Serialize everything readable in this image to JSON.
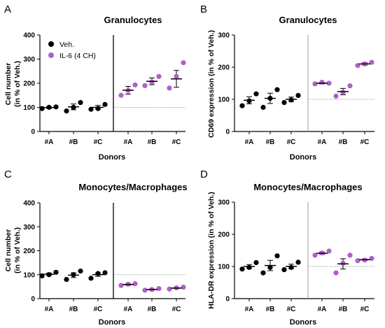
{
  "colors": {
    "veh": "#000000",
    "il6": "#b25fcc",
    "axis": "#000000",
    "baseline": "#888888",
    "divider_A_C": "#000000",
    "divider_B_D": "#999999"
  },
  "legend": {
    "veh": "Veh.",
    "il6": "IL-6 (4 CH)"
  },
  "chart_data": [
    {
      "panel": "A",
      "type": "scatter",
      "title": "Granulocytes",
      "xlabel": "Donors",
      "ylabel_line1": "Cell number",
      "ylabel_line2": "(in % of Veh.)",
      "ylim": [
        0,
        400
      ],
      "yticks": [
        "0",
        "100",
        "200",
        "300",
        "400"
      ],
      "categories": [
        "#A",
        "#B",
        "#C"
      ],
      "baseline": 100,
      "divider": "solid",
      "legend_placement": "top-left",
      "series": [
        {
          "name": "Veh.",
          "points": [
            [
              95,
              100,
              102
            ],
            [
              85,
              100,
              120
            ],
            [
              92,
              95,
              112
            ]
          ],
          "mean": [
            99,
            102,
            100
          ],
          "sem": [
            3,
            12,
            8
          ]
        },
        {
          "name": "IL-6 (4 CH)",
          "points": [
            [
              150,
              170,
              193
            ],
            [
              190,
              205,
              228
            ],
            [
              180,
              228,
              285
            ]
          ],
          "mean": [
            171,
            208,
            218
          ],
          "sem": [
            16,
            14,
            35
          ]
        }
      ]
    },
    {
      "panel": "B",
      "type": "scatter",
      "title": "Granulocytes",
      "xlabel": "Donors",
      "ylabel": "CD69 expression (in % of Veh.)",
      "ylim": [
        0,
        300
      ],
      "yticks": [
        "0",
        "100",
        "200",
        "300"
      ],
      "categories": [
        "#A",
        "#B",
        "#C"
      ],
      "baseline": 100,
      "divider": "gray",
      "series": [
        {
          "name": "Veh.",
          "points": [
            [
              80,
              95,
              117
            ],
            [
              75,
              103,
              130
            ],
            [
              90,
              98,
              112
            ]
          ],
          "mean": [
            97,
            103,
            100
          ],
          "sem": [
            11,
            16,
            7
          ]
        },
        {
          "name": "IL-6 (4 CH)",
          "points": [
            [
              148,
              153,
              150
            ],
            [
              110,
              122,
              142
            ],
            [
              205,
              210,
              215
            ]
          ],
          "mean": [
            150,
            124,
            210
          ],
          "sem": [
            2,
            10,
            4
          ]
        }
      ]
    },
    {
      "panel": "C",
      "type": "scatter",
      "title": "Monocytes/Macrophages",
      "xlabel": "Donors",
      "ylabel_line1": "Cell number",
      "ylabel_line2": "(in % of Veh.)",
      "ylim": [
        0,
        400
      ],
      "yticks": [
        "0",
        "100",
        "200",
        "300",
        "400"
      ],
      "categories": [
        "#A",
        "#B",
        "#C"
      ],
      "baseline": 100,
      "divider": "solid",
      "series": [
        {
          "name": "Veh.",
          "points": [
            [
              95,
              100,
              110
            ],
            [
              80,
              100,
              115
            ],
            [
              85,
              105,
              108
            ]
          ],
          "mean": [
            102,
            98,
            100
          ],
          "sem": [
            5,
            10,
            7
          ]
        },
        {
          "name": "IL-6 (4 CH)",
          "points": [
            [
              55,
              60,
              62
            ],
            [
              35,
              38,
              42
            ],
            [
              40,
              45,
              48
            ]
          ],
          "mean": [
            59,
            38,
            44
          ],
          "sem": [
            3,
            2,
            2
          ]
        }
      ]
    },
    {
      "panel": "D",
      "type": "scatter",
      "title": "Monocytes/Macrophages",
      "xlabel": "Donors",
      "ylabel": "HLA-DR expression (in % of Veh.)",
      "ylim": [
        0,
        300
      ],
      "yticks": [
        "0",
        "100",
        "200",
        "300"
      ],
      "categories": [
        "#A",
        "#B",
        "#C"
      ],
      "baseline": 100,
      "divider": "gray",
      "series": [
        {
          "name": "Veh.",
          "points": [
            [
              92,
              97,
              112
            ],
            [
              80,
              97,
              133
            ],
            [
              90,
              97,
              113
            ]
          ],
          "mean": [
            100,
            103,
            100
          ],
          "sem": [
            6,
            16,
            7
          ]
        },
        {
          "name": "IL-6 (4 CH)",
          "points": [
            [
              135,
              142,
              148
            ],
            [
              80,
              110,
              135
            ],
            [
              118,
              120,
              125
            ]
          ],
          "mean": [
            141,
            108,
            121
          ],
          "sem": [
            4,
            16,
            2
          ]
        }
      ]
    }
  ]
}
